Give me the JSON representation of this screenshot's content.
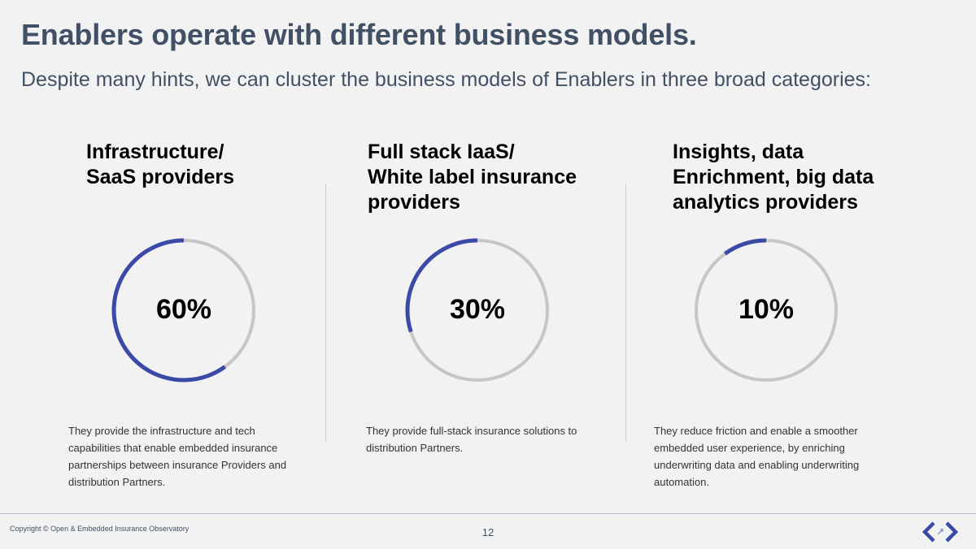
{
  "slide": {
    "title": "Enablers operate with different business models.",
    "subtitle": "Despite many hints, we can cluster the business models of Enablers in three broad categories:",
    "copyright": "Copyright © Open & Embedded Insurance Observatory",
    "page_number": "12"
  },
  "categories": [
    {
      "heading": "Infrastructure/\nSaaS providers",
      "percent_label": "60%",
      "description": "They provide the infrastructure and tech capabilities that enable embedded insurance partnerships between insurance Providers and distribution Partners."
    },
    {
      "heading": "Full stack IaaS/\nWhite label insurance\nproviders",
      "percent_label": "30%",
      "description": "They provide full-stack insurance solutions to distribution Partners."
    },
    {
      "heading": "Insights, data\nEnrichment, big data\nanalytics providers",
      "percent_label": "10%",
      "description": "They reduce friction and enable a smoother embedded user experience, by enriching underwriting data and enabling underwriting automation."
    }
  ],
  "colors": {
    "accent": "#3b4aa6",
    "track": "#c6c6c6",
    "title": "#415064"
  },
  "chart_data": {
    "type": "pie",
    "variant": "donut",
    "categories": [
      "Infrastructure/ SaaS providers",
      "Full stack IaaS/ White label insurance providers",
      "Insights, data Enrichment, big data analytics providers"
    ],
    "values": [
      60,
      30,
      10
    ],
    "unit": "%"
  }
}
